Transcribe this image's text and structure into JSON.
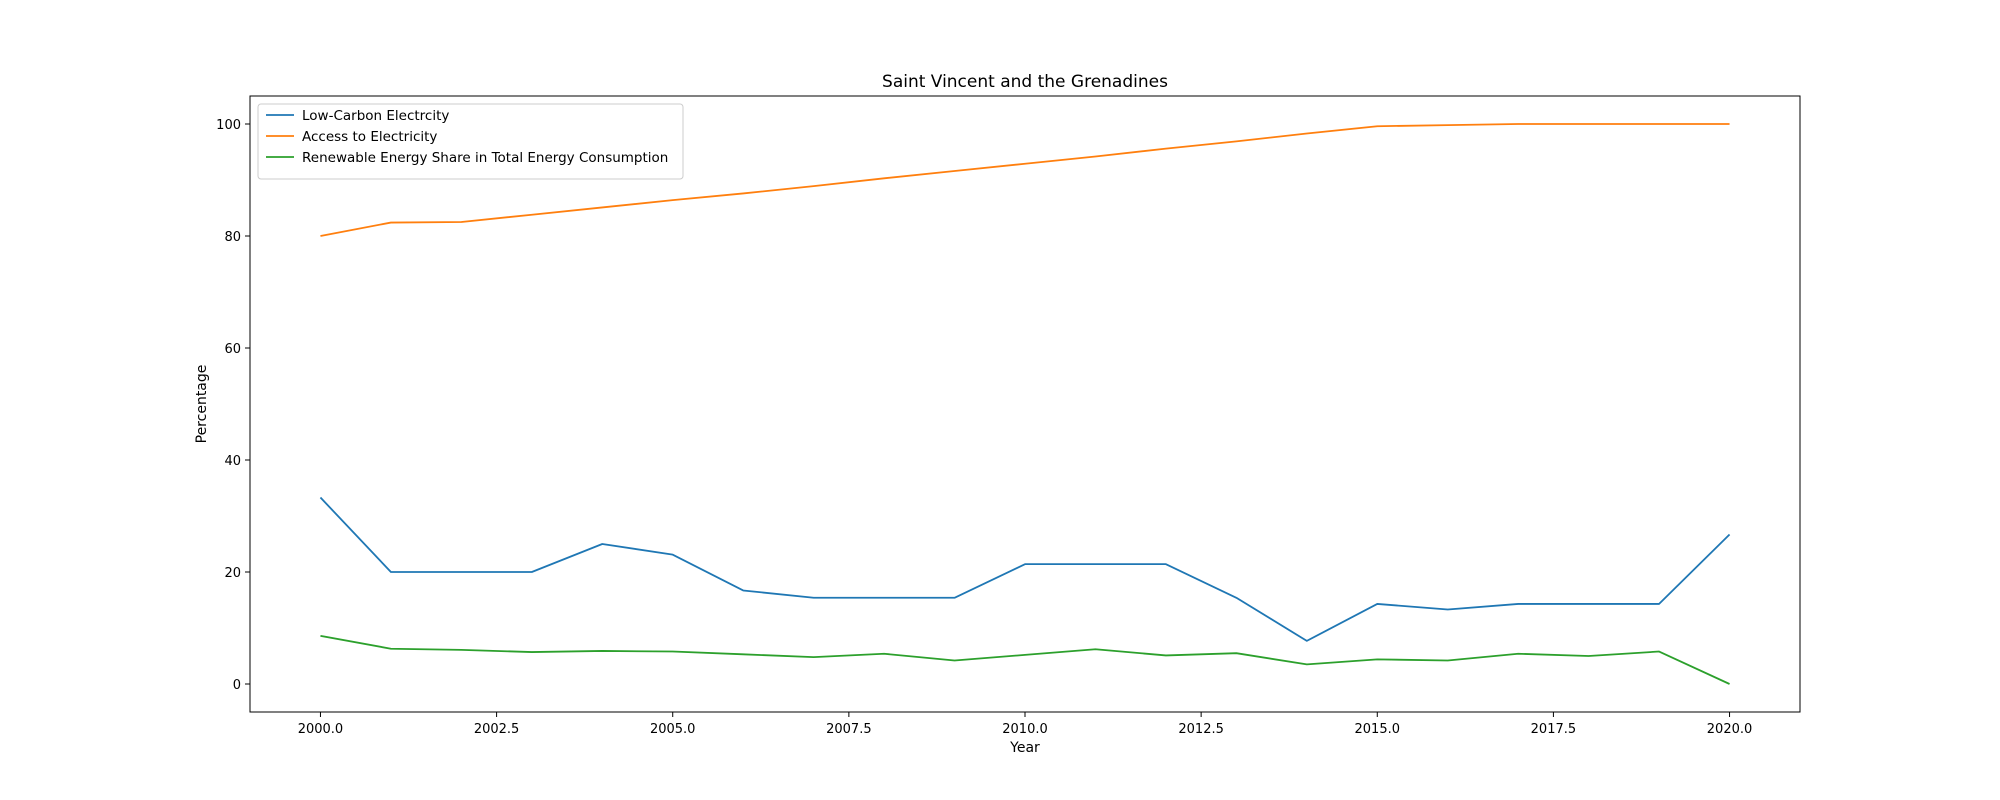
{
  "chart_data": {
    "type": "line",
    "title": "Saint Vincent and the Grenadines",
    "xlabel": "Year",
    "ylabel": "Percentage",
    "xlim": [
      1999,
      2021
    ],
    "ylim": [
      -5,
      105
    ],
    "xticks": [
      2000.0,
      2002.5,
      2005.0,
      2007.5,
      2010.0,
      2012.5,
      2015.0,
      2017.5,
      2020.0
    ],
    "xtick_labels": [
      "2000.0",
      "2002.5",
      "2005.0",
      "2007.5",
      "2010.0",
      "2012.5",
      "2015.0",
      "2017.5",
      "2020.0"
    ],
    "yticks": [
      0,
      20,
      40,
      60,
      80,
      100
    ],
    "ytick_labels": [
      "0",
      "20",
      "40",
      "60",
      "80",
      "100"
    ],
    "grid": false,
    "legend_position": "top-left",
    "x": [
      2000,
      2001,
      2002,
      2003,
      2004,
      2005,
      2006,
      2007,
      2008,
      2009,
      2010,
      2011,
      2012,
      2013,
      2014,
      2015,
      2016,
      2017,
      2018,
      2019,
      2020
    ],
    "series": [
      {
        "name": "Low-Carbon Electrcity",
        "color": "#1f77b4",
        "values": [
          33.3,
          20.0,
          20.0,
          20.0,
          25.0,
          23.1,
          16.7,
          15.4,
          15.4,
          15.4,
          21.4,
          21.4,
          21.4,
          15.4,
          7.7,
          14.3,
          13.3,
          14.3,
          14.3,
          14.3,
          26.7
        ]
      },
      {
        "name": "Access to Electricity",
        "color": "#ff7f0e",
        "values": [
          80.0,
          82.4,
          82.5,
          83.8,
          85.1,
          86.4,
          87.6,
          88.9,
          90.3,
          91.6,
          92.9,
          94.2,
          95.6,
          96.9,
          98.3,
          99.6,
          99.8,
          100.0,
          100.0,
          100.0,
          100.0
        ]
      },
      {
        "name": "Renewable Energy Share in Total Energy Consumption",
        "color": "#2ca02c",
        "values": [
          8.6,
          6.3,
          6.1,
          5.7,
          5.9,
          5.8,
          5.3,
          4.8,
          5.4,
          4.2,
          5.2,
          6.2,
          5.1,
          5.5,
          3.5,
          4.4,
          4.2,
          5.4,
          5.0,
          5.8,
          0.0
        ]
      }
    ]
  }
}
